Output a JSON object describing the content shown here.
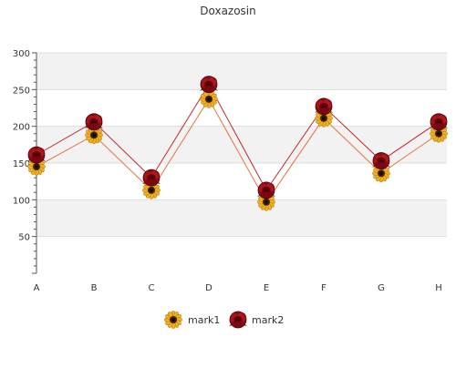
{
  "chart_data": {
    "type": "line",
    "title": "Doxazosin",
    "xlabel": "",
    "ylabel": "",
    "categories": [
      "A",
      "B",
      "C",
      "D",
      "E",
      "F",
      "G",
      "H"
    ],
    "ylim": [
      0,
      300
    ],
    "yticks": [
      50,
      100,
      150,
      200,
      250,
      300
    ],
    "grid": "horizontal bands",
    "legend": "bottom-center",
    "series": [
      {
        "name": "mark1",
        "values": [
          145,
          188,
          113,
          237,
          97,
          211,
          136,
          190
        ],
        "marker": "sunflower-icon",
        "color": "#e8703a"
      },
      {
        "name": "mark2",
        "values": [
          161,
          206,
          130,
          257,
          113,
          227,
          153,
          206
        ],
        "marker": "rose-icon",
        "color": "#c0262b"
      }
    ]
  },
  "colors": {
    "band": "#f2f2f2",
    "gridline": "#dddddd",
    "axis": "#555555",
    "text": "#333333"
  }
}
